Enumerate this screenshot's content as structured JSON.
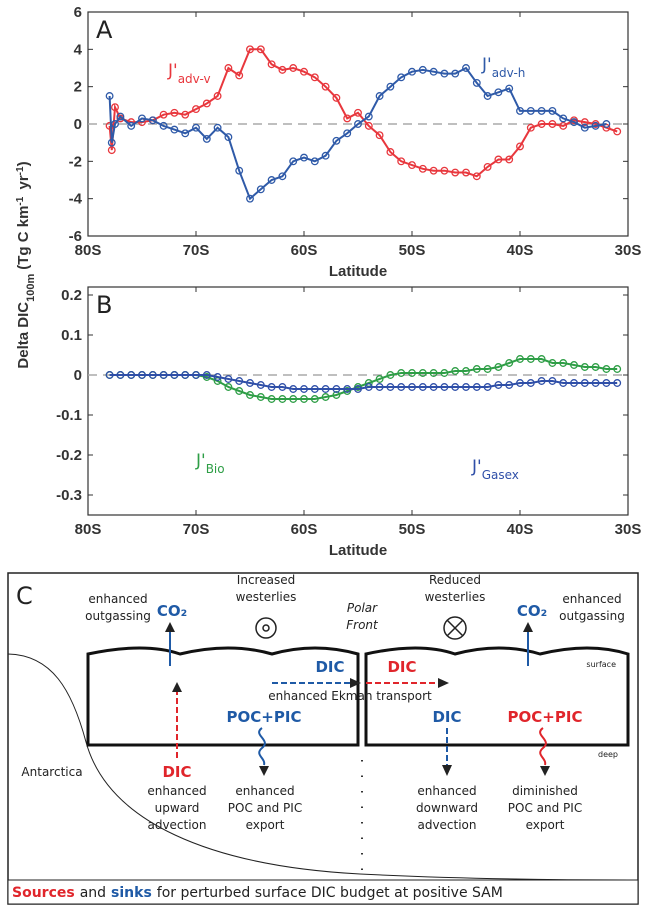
{
  "y_label_parts": [
    "Delta DIC",
    "100m",
    "(Tg C km",
    "-1",
    " yr",
    "-1",
    ")"
  ],
  "chart_data": [
    {
      "type": "line",
      "panel_label": "A",
      "x_label": "Latitude",
      "xlim": [
        -80,
        -30
      ],
      "ylim": [
        -6,
        6
      ],
      "xticks": [
        {
          "value": -80,
          "label": "80S"
        },
        {
          "value": -70,
          "label": "70S"
        },
        {
          "value": -60,
          "label": "60S"
        },
        {
          "value": -50,
          "label": "50S"
        },
        {
          "value": -40,
          "label": "40S"
        },
        {
          "value": -30,
          "label": "30S"
        }
      ],
      "yticks": [
        -6,
        -4,
        -2,
        0,
        2,
        4,
        6
      ],
      "zero_line": true,
      "x": [
        -78,
        -77.8,
        -77.5,
        -77,
        -76,
        -75,
        -74,
        -73,
        -72,
        -71,
        -70,
        -69,
        -68,
        -67,
        -66,
        -65,
        -64,
        -63,
        -62,
        -61,
        -60,
        -59,
        -58,
        -57,
        -56,
        -55,
        -54,
        -53,
        -52,
        -51,
        -50,
        -49,
        -48,
        -47,
        -46,
        -45,
        -44,
        -43,
        -42,
        -41,
        -40,
        -39,
        -38,
        -37,
        -36,
        -35,
        -34,
        -33,
        -32,
        -31
      ],
      "series": [
        {
          "name": "J'",
          "name_sub": "adv-v",
          "color": "#e8373d",
          "values": [
            -0.1,
            -1.4,
            0.9,
            0.3,
            0.1,
            0.1,
            0.2,
            0.5,
            0.6,
            0.5,
            0.8,
            1.1,
            1.5,
            3.0,
            2.6,
            4.0,
            4.0,
            3.2,
            2.9,
            3.0,
            2.8,
            2.5,
            2.0,
            1.4,
            0.3,
            0.6,
            -0.1,
            -0.6,
            -1.5,
            -2.0,
            -2.2,
            -2.4,
            -2.5,
            -2.5,
            -2.6,
            -2.6,
            -2.8,
            -2.3,
            -1.9,
            -1.9,
            -1.2,
            -0.2,
            0,
            0,
            -0.1,
            0.2,
            0.1,
            0,
            -0.2,
            -0.4
          ]
        },
        {
          "name": "J'",
          "name_sub": "adv-h",
          "color": "#2f5aa8",
          "values": [
            1.5,
            -1.0,
            0,
            0.4,
            -0.1,
            0.3,
            0.2,
            -0.1,
            -0.3,
            -0.5,
            -0.2,
            -0.8,
            -0.2,
            -0.7,
            -2.5,
            -4.0,
            -3.5,
            -3.0,
            -2.8,
            -2.0,
            -1.8,
            -2.0,
            -1.7,
            -0.9,
            -0.5,
            0,
            0.4,
            1.5,
            2.0,
            2.5,
            2.8,
            2.9,
            2.8,
            2.7,
            2.7,
            3.0,
            2.2,
            1.5,
            1.7,
            1.9,
            0.7,
            0.7,
            0.7,
            0.7,
            0.3,
            0.1,
            -0.2,
            -0.1,
            0,
            null
          ]
        }
      ]
    },
    {
      "type": "line",
      "panel_label": "B",
      "x_label": "Latitude",
      "xlim": [
        -80,
        -30
      ],
      "ylim": [
        -0.35,
        0.22
      ],
      "xticks": [
        {
          "value": -80,
          "label": "80S"
        },
        {
          "value": -70,
          "label": "70S"
        },
        {
          "value": -60,
          "label": "60S"
        },
        {
          "value": -50,
          "label": "50S"
        },
        {
          "value": -40,
          "label": "40S"
        },
        {
          "value": -30,
          "label": "30S"
        }
      ],
      "yticks": [
        0.2,
        0.1,
        0,
        -0.1,
        -0.2,
        -0.3
      ],
      "zero_line": true,
      "x": [
        -78,
        -77,
        -76,
        -75,
        -74,
        -73,
        -72,
        -71,
        -70,
        -69,
        -68,
        -67,
        -66,
        -65,
        -64,
        -63,
        -62,
        -61,
        -60,
        -59,
        -58,
        -57,
        -56,
        -55,
        -54,
        -53,
        -52,
        -51,
        -50,
        -49,
        -48,
        -47,
        -46,
        -45,
        -44,
        -43,
        -42,
        -41,
        -40,
        -39,
        -38,
        -37,
        -36,
        -35,
        -34,
        -33,
        -32,
        -31
      ],
      "series": [
        {
          "name": "J'",
          "name_sub": "Bio",
          "color": "#2e9e46",
          "values": [
            0,
            0,
            0,
            0,
            0,
            0,
            0,
            0,
            0,
            -0.005,
            -0.015,
            -0.03,
            -0.04,
            -0.05,
            -0.055,
            -0.06,
            -0.06,
            -0.06,
            -0.06,
            -0.06,
            -0.055,
            -0.05,
            -0.04,
            -0.03,
            -0.02,
            -0.01,
            0,
            0.005,
            0.005,
            0.005,
            0.005,
            0.005,
            0.01,
            0.01,
            0.015,
            0.015,
            0.02,
            0.03,
            0.04,
            0.04,
            0.04,
            0.03,
            0.03,
            0.025,
            0.02,
            0.02,
            0.015,
            0.015
          ]
        },
        {
          "name": "J'",
          "name_sub": "Gasex",
          "color": "#2f4fa8",
          "values": [
            0,
            0,
            0,
            0,
            0,
            0,
            0,
            0,
            0,
            0,
            -0.005,
            -0.01,
            -0.015,
            -0.02,
            -0.025,
            -0.03,
            -0.03,
            -0.035,
            -0.035,
            -0.035,
            -0.035,
            -0.035,
            -0.035,
            -0.035,
            -0.03,
            -0.03,
            -0.03,
            -0.03,
            -0.03,
            -0.03,
            -0.03,
            -0.03,
            -0.03,
            -0.03,
            -0.03,
            -0.03,
            -0.025,
            -0.025,
            -0.02,
            -0.02,
            -0.015,
            -0.015,
            -0.02,
            -0.02,
            -0.02,
            -0.02,
            -0.02,
            -0.02
          ]
        }
      ]
    }
  ],
  "diagram": {
    "panel_label": "C",
    "left_outgassing": [
      "enhanced",
      "outgassing"
    ],
    "left_co2": "CO₂",
    "increased": [
      "Increased",
      "westerlies"
    ],
    "polar_front": [
      "Polar",
      "Front"
    ],
    "reduced": [
      "Reduced",
      "westerlies"
    ],
    "right_co2": "CO₂",
    "right_outgassing": [
      "enhanced",
      "outgassing"
    ],
    "surface": "surface",
    "deep": "deep",
    "dic_blue_ekman": "DIC",
    "dic_red_ekman": "DIC",
    "ekman": "enhanced Ekman transport",
    "poc_left": "POC+PIC",
    "dic_upward": "DIC",
    "upward": [
      "enhanced",
      "upward",
      "advection"
    ],
    "poc_export_left": [
      "enhanced",
      "POC and PIC",
      "export"
    ],
    "dic_downward": "DIC",
    "downward": [
      "enhanced",
      "downward",
      "advection"
    ],
    "poc_right": "POC+PIC",
    "poc_export_right": [
      "diminished",
      "POC and PIC",
      "export"
    ],
    "antarctica": "Antarctica",
    "caption": {
      "sources": "Sources",
      "and": "and",
      "sinks": "sinks",
      "rest": "for perturbed surface DIC budget at positive SAM"
    }
  }
}
